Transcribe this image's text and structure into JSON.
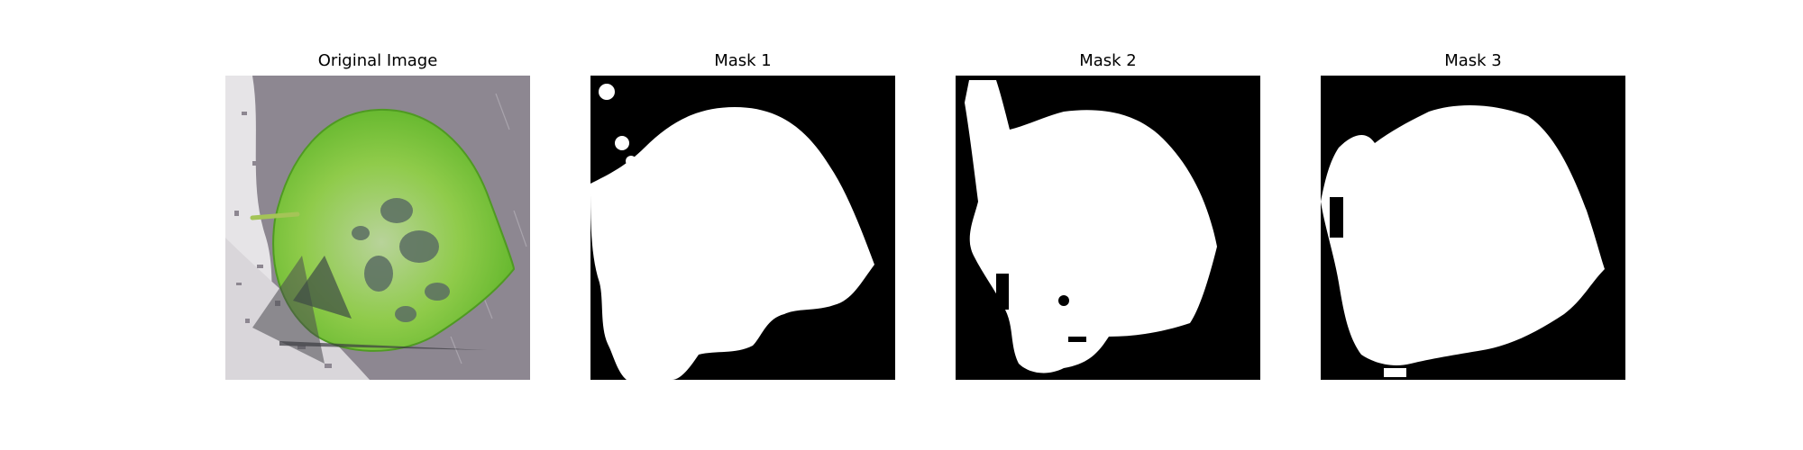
{
  "panels": [
    {
      "title": "Original Image"
    },
    {
      "title": "Mask 1"
    },
    {
      "title": "Mask 2"
    },
    {
      "title": "Mask 3"
    }
  ],
  "colors": {
    "background": "#ffffff",
    "mask_bg": "#000000",
    "mask_fg": "#ffffff",
    "leaf_green": "#7cc23a",
    "surface_gray": "#8d8791"
  }
}
